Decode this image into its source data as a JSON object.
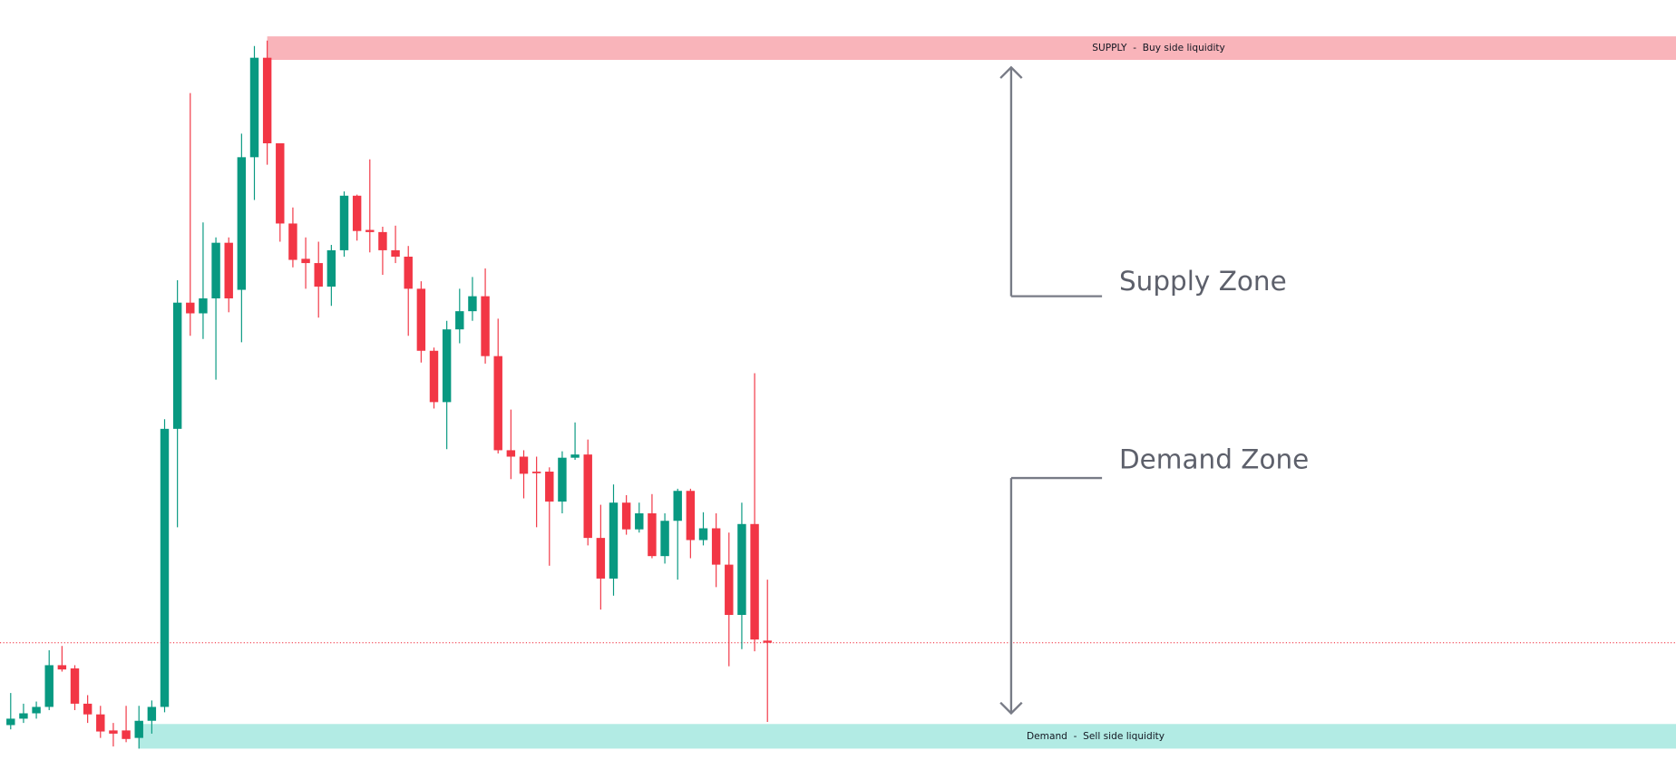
{
  "chart_data": {
    "type": "candlestick",
    "up_color": "#089981",
    "down_color": "#f23645",
    "ylim": [
      0,
      720
    ],
    "open": [
      42,
      48,
      53,
      59,
      98,
      95,
      62,
      52,
      37,
      37,
      30,
      46,
      59,
      319,
      437,
      427,
      441,
      493,
      449,
      573,
      666,
      586,
      511,
      478,
      474,
      452,
      486,
      537,
      505,
      503,
      486,
      480,
      450,
      392,
      344,
      412,
      429,
      443,
      387,
      299,
      293,
      279,
      279,
      251,
      292,
      295,
      217,
      179,
      250,
      225,
      240,
      200,
      233,
      261,
      215,
      226,
      192,
      145,
      230,
      121
    ],
    "high": [
      72,
      62,
      64,
      112,
      116,
      98,
      70,
      60,
      44,
      60,
      60,
      65,
      328,
      458,
      633,
      512,
      498,
      498,
      595,
      677,
      682,
      586,
      526,
      498,
      494,
      491,
      541,
      538,
      571,
      508,
      509,
      490,
      457,
      395,
      420,
      450,
      461,
      469,
      422,
      337,
      299,
      293,
      283,
      298,
      325,
      309,
      248,
      267,
      257,
      250,
      258,
      240,
      263,
      263,
      241,
      240,
      222,
      250,
      371,
      178
    ],
    "low": [
      38,
      44,
      48,
      56,
      92,
      56,
      44,
      30,
      22,
      26,
      20,
      34,
      54,
      227,
      406,
      403,
      365,
      428,
      400,
      533,
      566,
      494,
      470,
      450,
      423,
      434,
      480,
      495,
      484,
      463,
      474,
      406,
      381,
      338,
      300,
      399,
      420,
      380,
      296,
      272,
      254,
      227,
      191,
      240,
      290,
      210,
      150,
      163,
      220,
      222,
      198,
      193,
      178,
      198,
      210,
      171,
      97,
      113,
      111,
      45
    ],
    "close": [
      48,
      53,
      59,
      98,
      94,
      62,
      52,
      36,
      34,
      29,
      46,
      59,
      319,
      437,
      427,
      441,
      493,
      441,
      573,
      666,
      586,
      511,
      477,
      474,
      452,
      486,
      537,
      504,
      503,
      486,
      480,
      450,
      392,
      344,
      412,
      429,
      443,
      387,
      299,
      293,
      277,
      278,
      251,
      292,
      295,
      217,
      179,
      250,
      225,
      240,
      200,
      233,
      261,
      215,
      226,
      192,
      145,
      230,
      122,
      119
    ],
    "zones": [
      {
        "label": "SUPPLY  -  Buy side liquidity",
        "top": 686,
        "bottom": 664,
        "color": "#f9b4ba"
      },
      {
        "label": "Demand  -  Sell side liquidity",
        "top": 43,
        "bottom": 20,
        "color": "#b2ebe4"
      }
    ],
    "price_line": {
      "value": 119,
      "color": "#f23645"
    },
    "annotations": [
      "Supply Zone",
      "Demand Zone"
    ]
  }
}
